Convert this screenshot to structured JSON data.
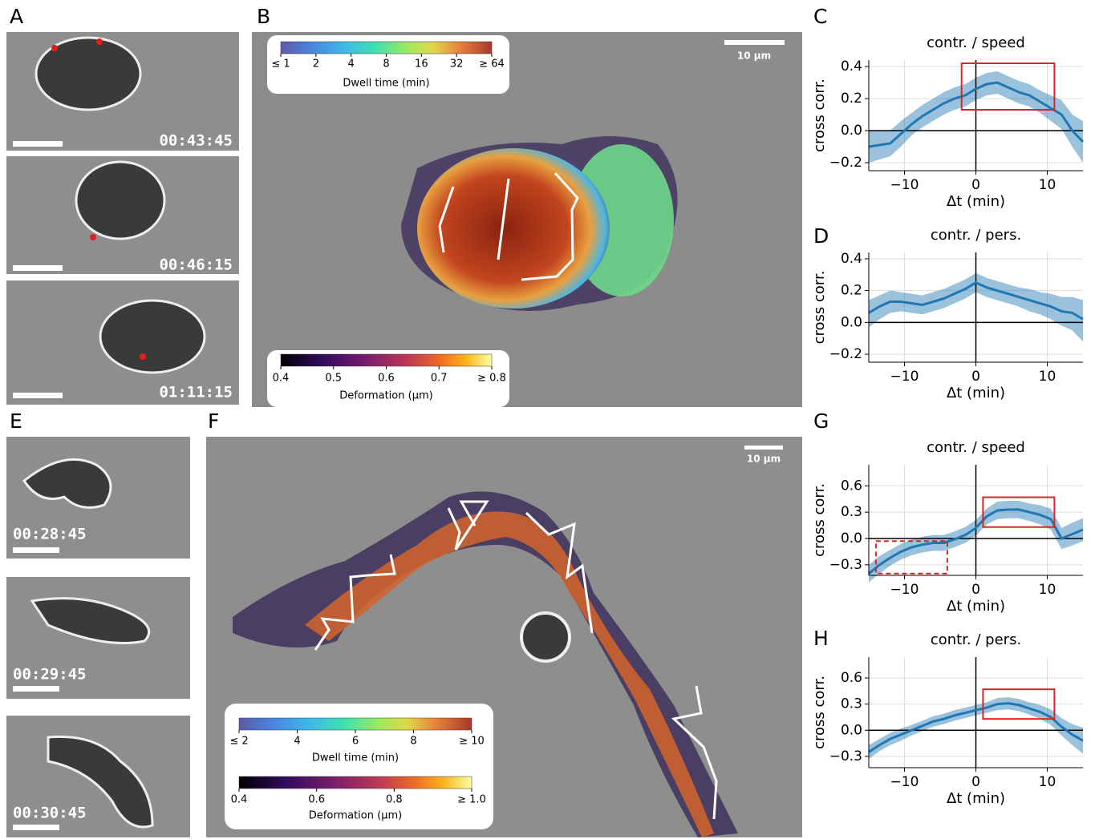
{
  "figure": {
    "panel_labels": {
      "a": "A",
      "b": "B",
      "c": "C",
      "d": "D",
      "e": "E",
      "f": "F",
      "g": "G",
      "h": "H"
    },
    "panel_a": {
      "timestamps": [
        "00:43:45",
        "00:46:15",
        "01:11:15"
      ]
    },
    "panel_b": {
      "scale_bar": "10 µm",
      "colorbars": [
        {
          "title": "Dwell time (min)",
          "colormap": "turbo",
          "scale": "log",
          "clim": [
            1,
            64
          ],
          "ticks": [
            {
              "value": 1,
              "label": "≤ 1"
            },
            2,
            4,
            8,
            16,
            32,
            {
              "value": 64,
              "label": "≥ 64"
            }
          ]
        },
        {
          "title": "Deformation (µm)",
          "colormap": "inferno",
          "scale": "linear",
          "clim": [
            0.4,
            0.8
          ],
          "ticks": [
            0.4,
            0.5,
            0.6,
            0.7,
            {
              "value": 0.8,
              "label": "≥ 0.8"
            }
          ]
        }
      ]
    },
    "panel_e": {
      "timestamps": [
        "00:28:45",
        "00:29:45",
        "00:30:45"
      ]
    },
    "panel_f": {
      "scale_bar": "10 µm",
      "colorbars": [
        {
          "title": "Dwell time (min)",
          "colormap": "turbo",
          "scale": "linear",
          "clim": [
            2,
            10
          ],
          "ticks": [
            {
              "value": 2,
              "label": "≤ 2"
            },
            4,
            6,
            8,
            {
              "value": 10,
              "label": "≥ 10"
            }
          ]
        },
        {
          "title": "Deformation (µm)",
          "colormap": "inferno",
          "scale": "linear",
          "clim": [
            0.4,
            1.0
          ],
          "ticks": [
            0.4,
            0.6,
            0.8,
            {
              "value": 1.0,
              "label": "≥ 1.0"
            }
          ]
        }
      ]
    }
  },
  "chart_data": [
    {
      "type": "line",
      "title": "contr. / speed",
      "xlabel": "Δt (min)",
      "ylabel": "cross corr.",
      "color": "#1f77b4",
      "grid": true,
      "xlim": [
        -15,
        15
      ],
      "ylim": [
        -0.25,
        0.44
      ],
      "xticks": [
        {
          "value": -10,
          "label": "−10"
        },
        0,
        10
      ],
      "yticks": [
        {
          "value": -0.2,
          "label": "−0.2"
        },
        {
          "value": 0,
          "label": "0.0"
        },
        0.2,
        0.4
      ],
      "hline": 0,
      "vline": 0,
      "x": [
        -15,
        -13.5,
        -12,
        -10.5,
        -9,
        -7.5,
        -6,
        -4.5,
        -3,
        -1.5,
        0,
        1.5,
        3,
        4.5,
        6,
        7.5,
        9,
        10.5,
        12,
        13.5,
        15
      ],
      "values": [
        -0.1,
        -0.09,
        -0.08,
        -0.02,
        0.04,
        0.09,
        0.13,
        0.17,
        0.2,
        0.22,
        0.26,
        0.29,
        0.3,
        0.27,
        0.24,
        0.22,
        0.18,
        0.14,
        0.1,
        0.0,
        -0.07
      ],
      "lower": [
        -0.2,
        -0.18,
        -0.16,
        -0.1,
        -0.03,
        0.02,
        0.06,
        0.1,
        0.13,
        0.15,
        0.19,
        0.22,
        0.23,
        0.2,
        0.17,
        0.15,
        0.11,
        0.06,
        0.01,
        -0.1,
        -0.2
      ],
      "upper": [
        0.0,
        0.0,
        0.0,
        0.06,
        0.11,
        0.16,
        0.2,
        0.24,
        0.27,
        0.29,
        0.33,
        0.36,
        0.37,
        0.34,
        0.31,
        0.29,
        0.25,
        0.22,
        0.19,
        0.1,
        0.06
      ],
      "boxes": [
        {
          "x": [
            -2,
            11
          ],
          "y": [
            0.13,
            0.42
          ],
          "style": "solid"
        }
      ]
    },
    {
      "type": "line",
      "title": "contr. / pers.",
      "xlabel": "Δt (min)",
      "ylabel": "cross corr.",
      "color": "#1f77b4",
      "grid": true,
      "xlim": [
        -15,
        15
      ],
      "ylim": [
        -0.25,
        0.44
      ],
      "xticks": [
        {
          "value": -10,
          "label": "−10"
        },
        0,
        10
      ],
      "yticks": [
        {
          "value": -0.2,
          "label": "−0.2"
        },
        {
          "value": 0,
          "label": "0.0"
        },
        0.2,
        0.4
      ],
      "hline": 0,
      "vline": 0,
      "x": [
        -15,
        -13.5,
        -12,
        -10.5,
        -9,
        -7.5,
        -6,
        -4.5,
        -3,
        -1.5,
        0,
        1.5,
        3,
        4.5,
        6,
        7.5,
        9,
        10.5,
        12,
        13.5,
        15
      ],
      "values": [
        0.06,
        0.1,
        0.13,
        0.13,
        0.12,
        0.11,
        0.13,
        0.15,
        0.18,
        0.21,
        0.25,
        0.22,
        0.2,
        0.18,
        0.16,
        0.14,
        0.12,
        0.1,
        0.07,
        0.06,
        0.02
      ],
      "lower": [
        -0.03,
        0.02,
        0.06,
        0.07,
        0.06,
        0.05,
        0.07,
        0.09,
        0.12,
        0.15,
        0.19,
        0.16,
        0.14,
        0.12,
        0.1,
        0.07,
        0.05,
        0.02,
        -0.02,
        -0.05,
        -0.12
      ],
      "upper": [
        0.14,
        0.17,
        0.2,
        0.19,
        0.18,
        0.17,
        0.19,
        0.21,
        0.24,
        0.27,
        0.31,
        0.28,
        0.26,
        0.24,
        0.22,
        0.21,
        0.19,
        0.18,
        0.16,
        0.16,
        0.14
      ],
      "boxes": []
    },
    {
      "type": "line",
      "title": "contr. / speed",
      "xlabel": "Δt (min)",
      "ylabel": "cross corr.",
      "color": "#1f77b4",
      "grid": true,
      "xlim": [
        -15,
        15
      ],
      "ylim": [
        -0.42,
        0.84
      ],
      "xticks": [
        {
          "value": -10,
          "label": "−10"
        },
        0,
        10
      ],
      "yticks": [
        {
          "value": -0.3,
          "label": "−0.3"
        },
        {
          "value": 0,
          "label": "0.0"
        },
        0.3,
        0.6
      ],
      "hline": 0,
      "vline": 0,
      "x": [
        -15,
        -13.5,
        -12,
        -10.5,
        -9,
        -7.5,
        -6,
        -4.5,
        -3,
        -1.5,
        0,
        1.5,
        3,
        4.5,
        6,
        7.5,
        9,
        10.5,
        12,
        13.5,
        15
      ],
      "values": [
        -0.4,
        -0.3,
        -0.22,
        -0.15,
        -0.1,
        -0.07,
        -0.05,
        -0.05,
        -0.01,
        0.04,
        0.12,
        0.25,
        0.32,
        0.33,
        0.33,
        0.3,
        0.27,
        0.22,
        0.0,
        0.05,
        0.1
      ],
      "lower": [
        -0.5,
        -0.4,
        -0.31,
        -0.24,
        -0.19,
        -0.16,
        -0.14,
        -0.14,
        -0.1,
        -0.05,
        0.03,
        0.16,
        0.22,
        0.23,
        0.23,
        0.2,
        0.16,
        0.1,
        -0.12,
        -0.08,
        -0.03
      ],
      "upper": [
        -0.3,
        -0.2,
        -0.13,
        -0.06,
        -0.01,
        0.02,
        0.04,
        0.04,
        0.08,
        0.13,
        0.21,
        0.34,
        0.42,
        0.43,
        0.43,
        0.4,
        0.38,
        0.34,
        0.12,
        0.18,
        0.23
      ],
      "boxes": [
        {
          "x": [
            1,
            11
          ],
          "y": [
            0.13,
            0.47
          ],
          "style": "solid"
        },
        {
          "x": [
            -14,
            -4
          ],
          "y": [
            -0.4,
            -0.03
          ],
          "style": "dashed"
        }
      ]
    },
    {
      "type": "line",
      "title": "contr. / pers.",
      "xlabel": "Δt (min)",
      "ylabel": "cross corr.",
      "color": "#1f77b4",
      "grid": true,
      "xlim": [
        -15,
        15
      ],
      "ylim": [
        -0.43,
        0.84
      ],
      "xticks": [
        {
          "value": -10,
          "label": "−10"
        },
        0,
        10
      ],
      "yticks": [
        {
          "value": -0.3,
          "label": "−0.3"
        },
        {
          "value": 0,
          "label": "0.0"
        },
        0.3,
        0.6
      ],
      "hline": 0,
      "vline": 0,
      "x": [
        -15,
        -13.5,
        -12,
        -10.5,
        -9,
        -7.5,
        -6,
        -4.5,
        -3,
        -1.5,
        0,
        1.5,
        3,
        4.5,
        6,
        7.5,
        9,
        10.5,
        12,
        13.5,
        15
      ],
      "values": [
        -0.25,
        -0.17,
        -0.1,
        -0.05,
        0.0,
        0.05,
        0.1,
        0.13,
        0.17,
        0.2,
        0.23,
        0.26,
        0.3,
        0.31,
        0.29,
        0.25,
        0.21,
        0.15,
        0.04,
        -0.05,
        -0.12
      ],
      "lower": [
        -0.33,
        -0.24,
        -0.17,
        -0.12,
        -0.06,
        -0.01,
        0.04,
        0.07,
        0.11,
        0.14,
        0.17,
        0.2,
        0.23,
        0.24,
        0.22,
        0.18,
        0.13,
        0.06,
        -0.06,
        -0.17,
        -0.27
      ],
      "upper": [
        -0.17,
        -0.1,
        -0.03,
        0.02,
        0.06,
        0.11,
        0.16,
        0.19,
        0.23,
        0.26,
        0.29,
        0.32,
        0.37,
        0.38,
        0.36,
        0.32,
        0.29,
        0.24,
        0.14,
        0.07,
        0.03
      ],
      "boxes": [
        {
          "x": [
            1,
            11
          ],
          "y": [
            0.13,
            0.47
          ],
          "style": "solid"
        }
      ]
    }
  ]
}
